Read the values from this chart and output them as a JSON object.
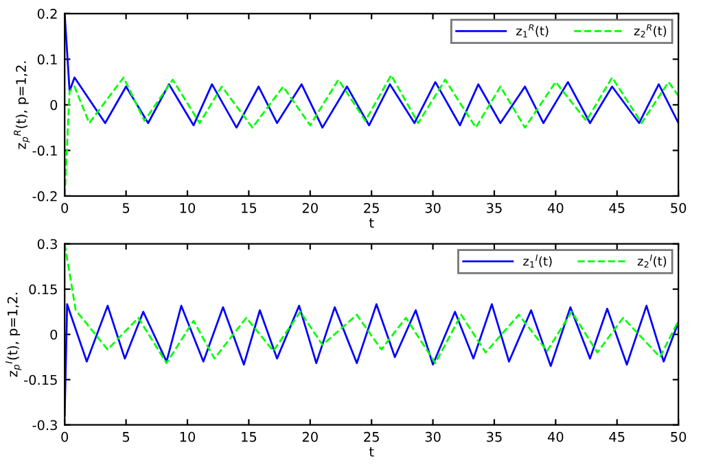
{
  "chart_data": [
    {
      "type": "line",
      "xlabel": "t",
      "ylabel": "z$_{p}$$^{R}$(t), p=1,2.",
      "xlim": [
        0,
        50
      ],
      "ylim": [
        -0.2,
        0.2
      ],
      "xticks": [
        0,
        5,
        10,
        15,
        20,
        25,
        30,
        35,
        40,
        45,
        50
      ],
      "yticks": [
        -0.2,
        -0.1,
        0,
        0.1,
        0.2
      ],
      "grid": false,
      "legend": "top right",
      "series": [
        {
          "name": "z$_{1}$$^{R}$(t)",
          "color": "#0000ff",
          "line_style": "solid",
          "x": [
            0,
            0.4,
            0.8,
            3.3,
            5,
            6.8,
            8.5,
            10.5,
            12,
            14,
            15.8,
            17.3,
            19.3,
            21,
            23,
            24.8,
            26.5,
            28.5,
            30.2,
            32.2,
            33.7,
            35.5,
            37.5,
            39,
            41,
            42.8,
            44.6,
            46.8,
            48.4,
            50
          ],
          "values": [
            0.2,
            0.03,
            0.06,
            -0.04,
            0.04,
            -0.04,
            0.045,
            -0.045,
            0.045,
            -0.05,
            0.04,
            -0.04,
            0.045,
            -0.05,
            0.04,
            -0.045,
            0.045,
            -0.04,
            0.05,
            -0.045,
            0.045,
            -0.04,
            0.04,
            -0.04,
            0.05,
            -0.04,
            0.04,
            -0.04,
            0.045,
            -0.04
          ]
        },
        {
          "name": "z$_{2}$$^{R}$(t)",
          "color": "#00ff00",
          "line_style": "dashed",
          "x": [
            0,
            0.4,
            0.8,
            2,
            4.8,
            6.5,
            8.8,
            11,
            12.8,
            15.3,
            17.8,
            20,
            22.3,
            24.5,
            26.6,
            28.8,
            31,
            33.5,
            35.5,
            37.5,
            40,
            42.5,
            44.6,
            47,
            49.2,
            50
          ],
          "values": [
            -0.2,
            0.03,
            0.04,
            -0.04,
            0.06,
            -0.035,
            0.055,
            -0.04,
            0.04,
            -0.05,
            0.04,
            -0.045,
            0.055,
            -0.035,
            0.065,
            -0.04,
            0.055,
            -0.05,
            0.04,
            -0.05,
            0.05,
            -0.035,
            0.06,
            -0.04,
            0.05,
            0.02
          ]
        }
      ]
    },
    {
      "type": "line",
      "xlabel": "t",
      "ylabel": "z$_{p}$$^{I}$(t), p=1,2.",
      "xlim": [
        0,
        50
      ],
      "ylim": [
        -0.3,
        0.3
      ],
      "xticks": [
        0,
        5,
        10,
        15,
        20,
        25,
        30,
        35,
        40,
        45,
        50
      ],
      "yticks": [
        -0.3,
        -0.15,
        0,
        0.15,
        0.3
      ],
      "grid": false,
      "legend": "top right",
      "series": [
        {
          "name": "z$_{1}$$^{I}$(t)",
          "color": "#0000ff",
          "line_style": "solid",
          "x": [
            0,
            0.2,
            1.8,
            3.5,
            4.9,
            6.4,
            8.3,
            9.5,
            11.3,
            12.9,
            14.6,
            15.9,
            17.3,
            19.1,
            20.5,
            22,
            23.8,
            25.4,
            26.9,
            28.6,
            30,
            31.8,
            33.3,
            34.8,
            36.2,
            38,
            39.6,
            41.2,
            42.8,
            44.2,
            45.8,
            47.4,
            48.8,
            50
          ],
          "values": [
            -0.27,
            0.1,
            -0.09,
            0.095,
            -0.08,
            0.075,
            -0.09,
            0.095,
            -0.09,
            0.09,
            -0.1,
            0.08,
            -0.08,
            0.095,
            -0.095,
            0.09,
            -0.095,
            0.1,
            -0.075,
            0.08,
            -0.1,
            0.075,
            -0.08,
            0.1,
            -0.09,
            0.08,
            -0.105,
            0.09,
            -0.08,
            0.085,
            -0.1,
            0.095,
            -0.09,
            0.04
          ]
        },
        {
          "name": "z$_{2}$$^{I}$(t)",
          "color": "#00ff00",
          "line_style": "dashed",
          "x": [
            0,
            0.9,
            3.5,
            6,
            8.3,
            10.5,
            12.2,
            14.8,
            17,
            19.2,
            21,
            23.8,
            25.8,
            27.8,
            30.2,
            32.3,
            34.3,
            37,
            39.3,
            41.3,
            43.4,
            45.5,
            48.5,
            50
          ],
          "values": [
            0.3,
            0.08,
            -0.05,
            0.055,
            -0.095,
            0.045,
            -0.08,
            0.055,
            -0.055,
            0.075,
            -0.035,
            0.065,
            -0.05,
            0.055,
            -0.095,
            0.065,
            -0.06,
            0.065,
            -0.055,
            0.075,
            -0.06,
            0.055,
            -0.075,
            0.045
          ]
        }
      ]
    }
  ]
}
